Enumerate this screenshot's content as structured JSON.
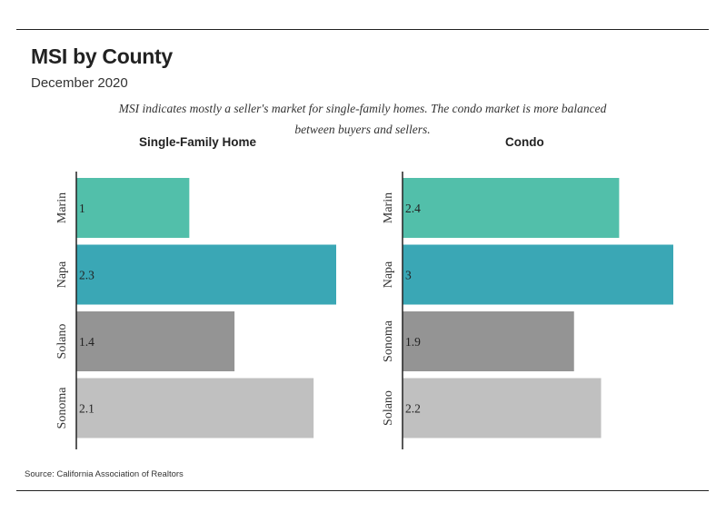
{
  "title": "MSI by County",
  "subtitle": "December 2020",
  "note": "MSI indicates mostly a seller's market for single-family homes. The condo market is more balanced between buyers and sellers.",
  "source": "Source:  California Association of Realtors",
  "chart_data": [
    {
      "type": "bar",
      "orientation": "horizontal",
      "title": "Single-Family Home",
      "categories": [
        "Marin",
        "Napa",
        "Solano",
        "Sonoma"
      ],
      "values": [
        1,
        2.3,
        1.4,
        2.1
      ],
      "value_labels": [
        "1",
        "2.3",
        "1.4",
        "2.1"
      ],
      "colors": [
        "#52bfaa",
        "#3aa7b5",
        "#949494",
        "#c0c0c0"
      ],
      "xlim": [
        0,
        2.3
      ]
    },
    {
      "type": "bar",
      "orientation": "horizontal",
      "title": "Condo",
      "categories": [
        "Marin",
        "Napa",
        "Sonoma",
        "Solano"
      ],
      "values": [
        2.4,
        3,
        1.9,
        2.2
      ],
      "value_labels": [
        "2.4",
        "3",
        "1.9",
        "2.2"
      ],
      "colors": [
        "#52bfaa",
        "#3aa7b5",
        "#949494",
        "#c0c0c0"
      ],
      "xlim": [
        0,
        3
      ]
    }
  ]
}
